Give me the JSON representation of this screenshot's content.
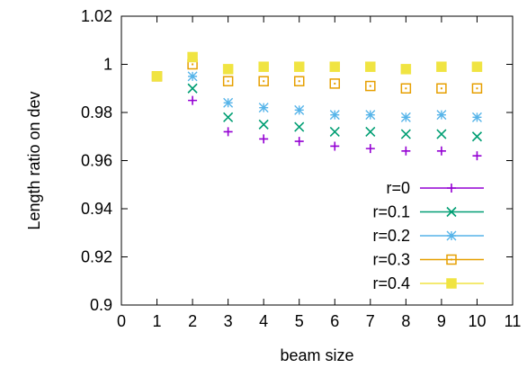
{
  "chart_data": {
    "type": "scatter",
    "xlabel": "beam size",
    "ylabel": "Length ratio on dev",
    "xlim": [
      0,
      11
    ],
    "ylim": [
      0.9,
      1.02
    ],
    "xticks": [
      "0",
      "1",
      "2",
      "3",
      "4",
      "5",
      "6",
      "7",
      "8",
      "9",
      "10",
      "11"
    ],
    "yticks": [
      "0.9",
      "0.92",
      "0.94",
      "0.96",
      "0.98",
      "1",
      "1.02"
    ],
    "grid": false,
    "legend_position": "bottom-right",
    "x": [
      1,
      2,
      3,
      4,
      5,
      6,
      7,
      8,
      9,
      10
    ],
    "series": [
      {
        "name": "r=0",
        "color": "#9400d3",
        "marker": "plus",
        "values": [
          0.995,
          0.985,
          0.972,
          0.969,
          0.968,
          0.966,
          0.965,
          0.964,
          0.964,
          0.962
        ]
      },
      {
        "name": "r=0.1",
        "color": "#009e73",
        "marker": "cross",
        "values": [
          0.995,
          0.99,
          0.978,
          0.975,
          0.974,
          0.972,
          0.972,
          0.971,
          0.971,
          0.97
        ]
      },
      {
        "name": "r=0.2",
        "color": "#56b4e9",
        "marker": "star",
        "values": [
          0.995,
          0.995,
          0.984,
          0.982,
          0.981,
          0.979,
          0.979,
          0.978,
          0.979,
          0.978
        ]
      },
      {
        "name": "r=0.3",
        "color": "#e69f00",
        "marker": "square-open",
        "values": [
          0.995,
          1.0,
          0.993,
          0.993,
          0.993,
          0.992,
          0.991,
          0.99,
          0.99,
          0.99
        ]
      },
      {
        "name": "r=0.4",
        "color": "#f0e442",
        "marker": "square-filled",
        "values": [
          0.995,
          1.003,
          0.998,
          0.999,
          0.999,
          0.999,
          0.999,
          0.998,
          0.999,
          0.999
        ]
      }
    ]
  }
}
